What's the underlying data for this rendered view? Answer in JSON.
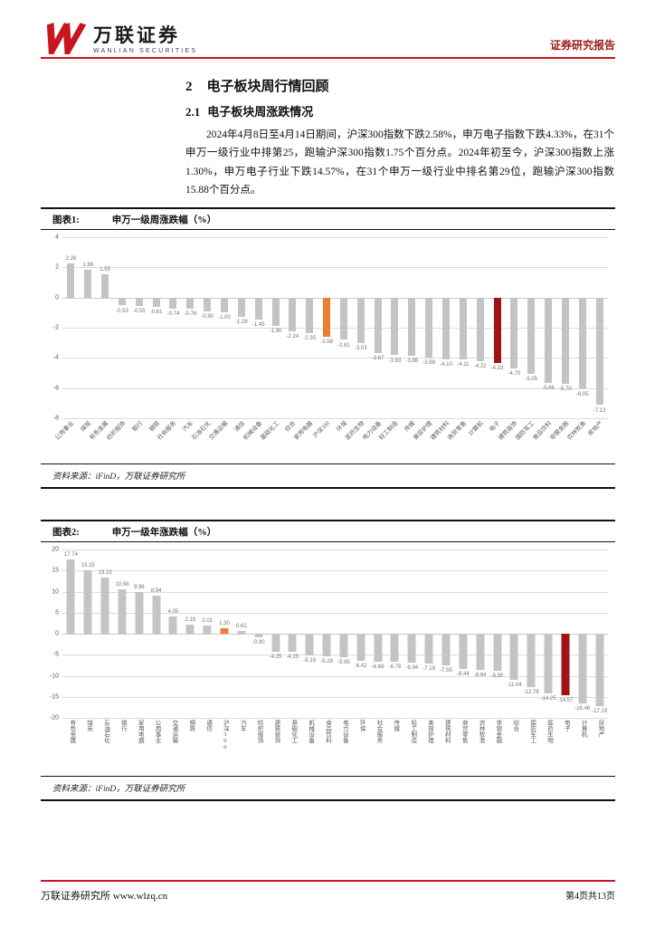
{
  "header": {
    "logo_cn": "万联证券",
    "logo_en": "WANLIAN SECURITIES",
    "report_type": "证券研究报告",
    "brand_red": "#c8161e"
  },
  "content": {
    "h1_num": "2",
    "h1_text": "电子板块周行情回顾",
    "h2_num": "2.1",
    "h2_text": "电子板块周涨跌情况",
    "paragraph": "2024年4月8日至4月14日期间，沪深300指数下跌2.58%，申万电子指数下跌4.33%，在31个申万一级行业中排第25，跑输沪深300指数1.75个百分点。2024年初至今，沪深300指数上涨1.30%，申万电子行业下跌14.57%，在31个申万一级行业中排名第29位，跑输沪深300指数15.88个百分点。"
  },
  "figure1": {
    "label": "图表1:",
    "title": "申万一级周涨跌幅（%）",
    "source": "资料来源：iFinD，万联证券研究所"
  },
  "figure2": {
    "label": "图表2:",
    "title": "申万一级年涨跌幅（%）",
    "source": "资料来源：iFinD，万联证券研究所"
  },
  "chart_data": [
    {
      "type": "bar",
      "title": "申万一级周涨跌幅（%）",
      "xlabel": "",
      "ylabel": "",
      "ylim": [
        -8,
        4
      ],
      "yticks": [
        4,
        2,
        0,
        -2,
        -4,
        -6,
        -8
      ],
      "grid": true,
      "legend": "none",
      "bar_color": "#c4c4c4",
      "highlights": {
        "沪深300": "#ed7d31",
        "电子": "#a11414"
      },
      "xlabel_mode": "rotate",
      "categories": [
        "公用事业",
        "煤炭",
        "有色金属",
        "纺织服饰",
        "银行",
        "钢铁",
        "社会服务",
        "汽车",
        "石油石化",
        "交通运输",
        "通信",
        "机械设备",
        "基础化工",
        "综合",
        "家用电器",
        "沪深300",
        "环保",
        "医药生物",
        "电力设备",
        "轻工制造",
        "传媒",
        "美容护理",
        "建筑材料",
        "商贸零售",
        "计算机",
        "电子",
        "建筑装饰",
        "国防军工",
        "食品饮料",
        "非银金融",
        "农林牧渔",
        "房地产"
      ],
      "values": [
        2.26,
        1.86,
        1.55,
        -0.53,
        -0.55,
        -0.61,
        -0.74,
        -0.76,
        -0.9,
        -1.0,
        -1.28,
        -1.45,
        -1.9,
        -2.24,
        -2.35,
        -2.58,
        -2.81,
        -3.03,
        -3.67,
        -3.83,
        -3.88,
        -3.98,
        -4.1,
        -4.11,
        -4.22,
        -4.33,
        -4.7,
        -5.05,
        -5.66,
        -5.7,
        -6.05,
        -7.13
      ]
    },
    {
      "type": "bar",
      "title": "申万一级年涨跌幅（%）",
      "xlabel": "",
      "ylabel": "",
      "ylim": [
        -20,
        20
      ],
      "yticks": [
        20,
        15,
        10,
        5,
        0,
        -5,
        -10,
        -15,
        -20
      ],
      "grid": true,
      "legend": "none",
      "bar_color": "#c4c4c4",
      "highlights": {
        "沪深300": "#ed7d31",
        "电子": "#a11414"
      },
      "xlabel_mode": "vertical",
      "categories": [
        "有色金属",
        "煤炭",
        "石油石化",
        "银行",
        "家用电器",
        "公用事业",
        "交通运输",
        "钢铁",
        "通信",
        "沪深300",
        "汽车",
        "纺织服饰",
        "建筑装饰",
        "基础化工",
        "机械设备",
        "食品饮料",
        "电力设备",
        "环保",
        "社会服务",
        "传媒",
        "轻工制造",
        "美容护理",
        "建筑材料",
        "商贸零售",
        "农林牧渔",
        "非银金融",
        "综合",
        "国防军工",
        "医药生物",
        "电子",
        "计算机",
        "房地产"
      ],
      "values": [
        17.74,
        15.15,
        13.23,
        10.58,
        9.98,
        8.94,
        4.05,
        2.19,
        2.01,
        1.3,
        0.61,
        -0.9,
        -4.25,
        -4.25,
        -5.19,
        -5.28,
        -5.65,
        -6.42,
        -6.68,
        -6.76,
        -6.94,
        -7.19,
        -7.55,
        -8.44,
        -8.64,
        -8.9,
        -11.04,
        -12.78,
        -14.25,
        -14.57,
        -16.46,
        -17.19
      ]
    }
  ],
  "footer": {
    "left": "万联证券研究所  www.wlzq.cn",
    "right": "第4页共13页"
  }
}
